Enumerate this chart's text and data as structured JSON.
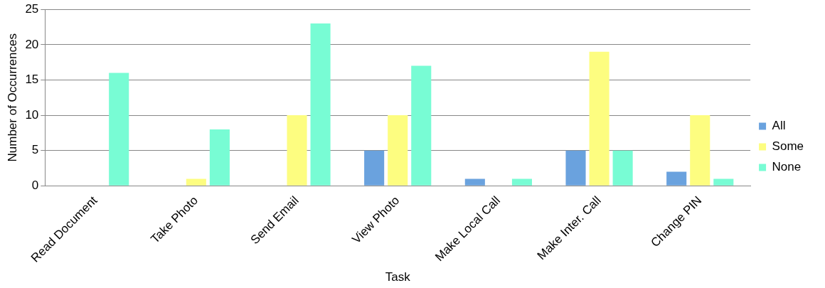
{
  "chart_data": {
    "type": "bar",
    "xlabel": "Task",
    "ylabel": "Number of Occurrences",
    "categories": [
      "Read Document",
      "Take Photo",
      "Send Email",
      "View Photo",
      "Make Local Call",
      "Make Inter. Call",
      "Change PIN"
    ],
    "series": [
      {
        "name": "All",
        "color": "#6aa2de",
        "values": [
          0,
          0,
          0,
          5,
          1,
          5,
          2
        ]
      },
      {
        "name": "Some",
        "color": "#fdfd80",
        "values": [
          0,
          1,
          10,
          10,
          0,
          19,
          10
        ]
      },
      {
        "name": "None",
        "color": "#78fcd4",
        "values": [
          16,
          8,
          23,
          17,
          1,
          5,
          1
        ]
      }
    ],
    "ylim": [
      0,
      25
    ],
    "yticks": [
      0,
      5,
      10,
      15,
      20,
      25
    ],
    "grid": "y",
    "legend": "right"
  }
}
